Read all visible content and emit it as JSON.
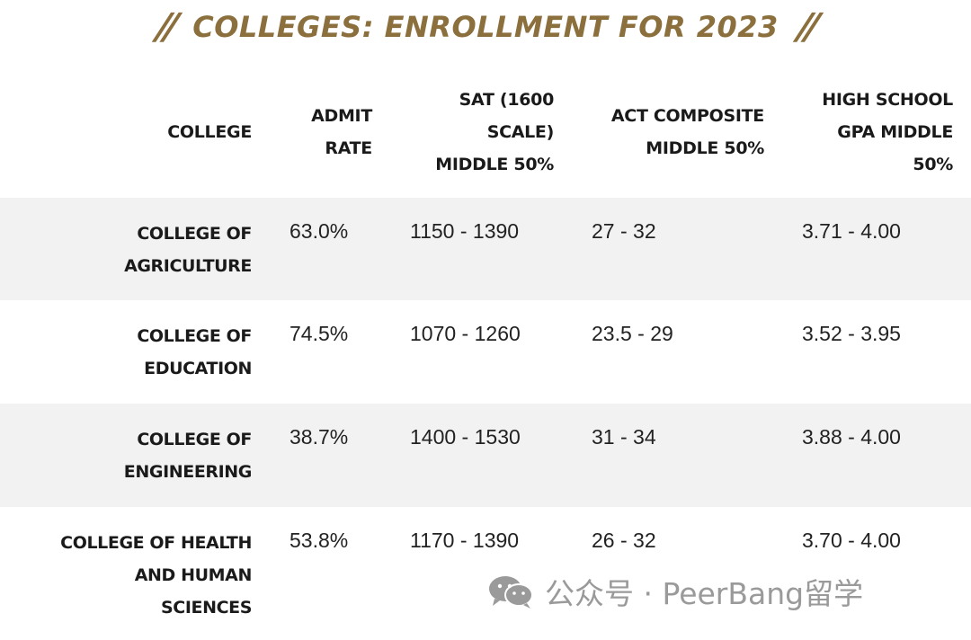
{
  "title": "COLLEGES: ENROLLMENT FOR 2023",
  "title_decoration": "//",
  "headers": {
    "college": "COLLEGE",
    "admit_rate": [
      "ADMIT",
      "RATE"
    ],
    "sat": [
      "SAT (1600",
      "SCALE)",
      "MIDDLE 50%"
    ],
    "act": [
      "ACT COMPOSITE",
      "MIDDLE 50%"
    ],
    "gpa": [
      "HIGH SCHOOL",
      "GPA MIDDLE",
      "50%"
    ]
  },
  "rows": [
    {
      "college": [
        "COLLEGE OF",
        "AGRICULTURE"
      ],
      "admit_rate": "63.0%",
      "sat": "1150 - 1390",
      "act": "27 - 32",
      "gpa": "3.71 - 4.00"
    },
    {
      "college": [
        "COLLEGE OF",
        "EDUCATION"
      ],
      "admit_rate": "74.5%",
      "sat": "1070 - 1260",
      "act": "23.5 - 29",
      "gpa": "3.52 - 3.95"
    },
    {
      "college": [
        "COLLEGE OF",
        "ENGINEERING"
      ],
      "admit_rate": "38.7%",
      "sat": "1400 - 1530",
      "act": "31 - 34",
      "gpa": "3.88 - 4.00"
    },
    {
      "college": [
        "COLLEGE OF HEALTH",
        "AND HUMAN",
        "SCIENCES"
      ],
      "admit_rate": "53.8%",
      "sat": "1170 - 1390",
      "act": "26 - 32",
      "gpa": "3.70 - 4.00"
    }
  ],
  "watermark": {
    "text": "公众号 · PeerBang留学",
    "icon": "wechat-icon"
  },
  "colors": {
    "accent": "#8b6f3d",
    "row_shade": "#f2f2f2",
    "watermark": "#9a9a9a"
  }
}
